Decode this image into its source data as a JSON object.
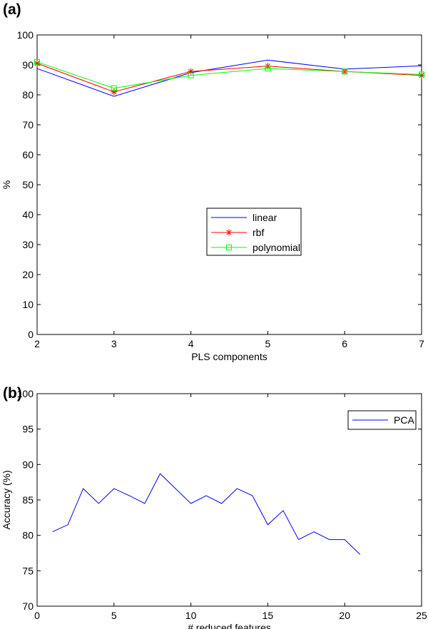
{
  "chart_data": [
    {
      "panel_label": "(a)",
      "type": "line",
      "title": "",
      "xlabel": "PLS components",
      "ylabel": "%",
      "xlim": [
        2,
        7
      ],
      "ylim": [
        0,
        100
      ],
      "xticks": [
        2,
        3,
        4,
        5,
        6,
        7
      ],
      "yticks": [
        0,
        10,
        20,
        30,
        40,
        50,
        60,
        70,
        80,
        90,
        100
      ],
      "grid": false,
      "legend_position": "center-right",
      "x": [
        2,
        3,
        4,
        5,
        6,
        7
      ],
      "series": [
        {
          "name": "linear",
          "color": "#0000ff",
          "marker": "none",
          "values": [
            88.8,
            79.5,
            87.4,
            91.6,
            88.6,
            89.7
          ]
        },
        {
          "name": "rbf",
          "color": "#ff0000",
          "marker": "star",
          "values": [
            90.5,
            81.0,
            87.8,
            89.6,
            87.8,
            86.5
          ]
        },
        {
          "name": "polynomial",
          "color": "#00ff00",
          "marker": "square",
          "values": [
            91.0,
            82.2,
            86.5,
            88.8,
            87.8,
            86.8
          ]
        }
      ]
    },
    {
      "panel_label": "(b)",
      "type": "line",
      "title": "",
      "xlabel": "# reduced features",
      "ylabel": "Accuracy (%)",
      "xlim": [
        0,
        25
      ],
      "ylim": [
        70,
        100
      ],
      "xticks": [
        0,
        5,
        10,
        15,
        20,
        25
      ],
      "yticks": [
        70,
        75,
        80,
        85,
        90,
        95,
        100
      ],
      "grid": false,
      "legend_position": "top-right",
      "x": [
        1,
        2,
        3,
        4,
        5,
        6,
        7,
        8,
        9,
        10,
        11,
        12,
        13,
        14,
        15,
        16,
        17,
        18,
        19,
        20,
        21
      ],
      "series": [
        {
          "name": "PCA",
          "color": "#0000ff",
          "marker": "none",
          "values": [
            80.5,
            81.5,
            86.6,
            84.5,
            86.6,
            85.6,
            84.5,
            88.7,
            86.6,
            84.5,
            85.6,
            84.5,
            86.6,
            85.6,
            81.5,
            83.5,
            79.4,
            80.5,
            79.4,
            79.4,
            77.3
          ]
        }
      ]
    }
  ]
}
